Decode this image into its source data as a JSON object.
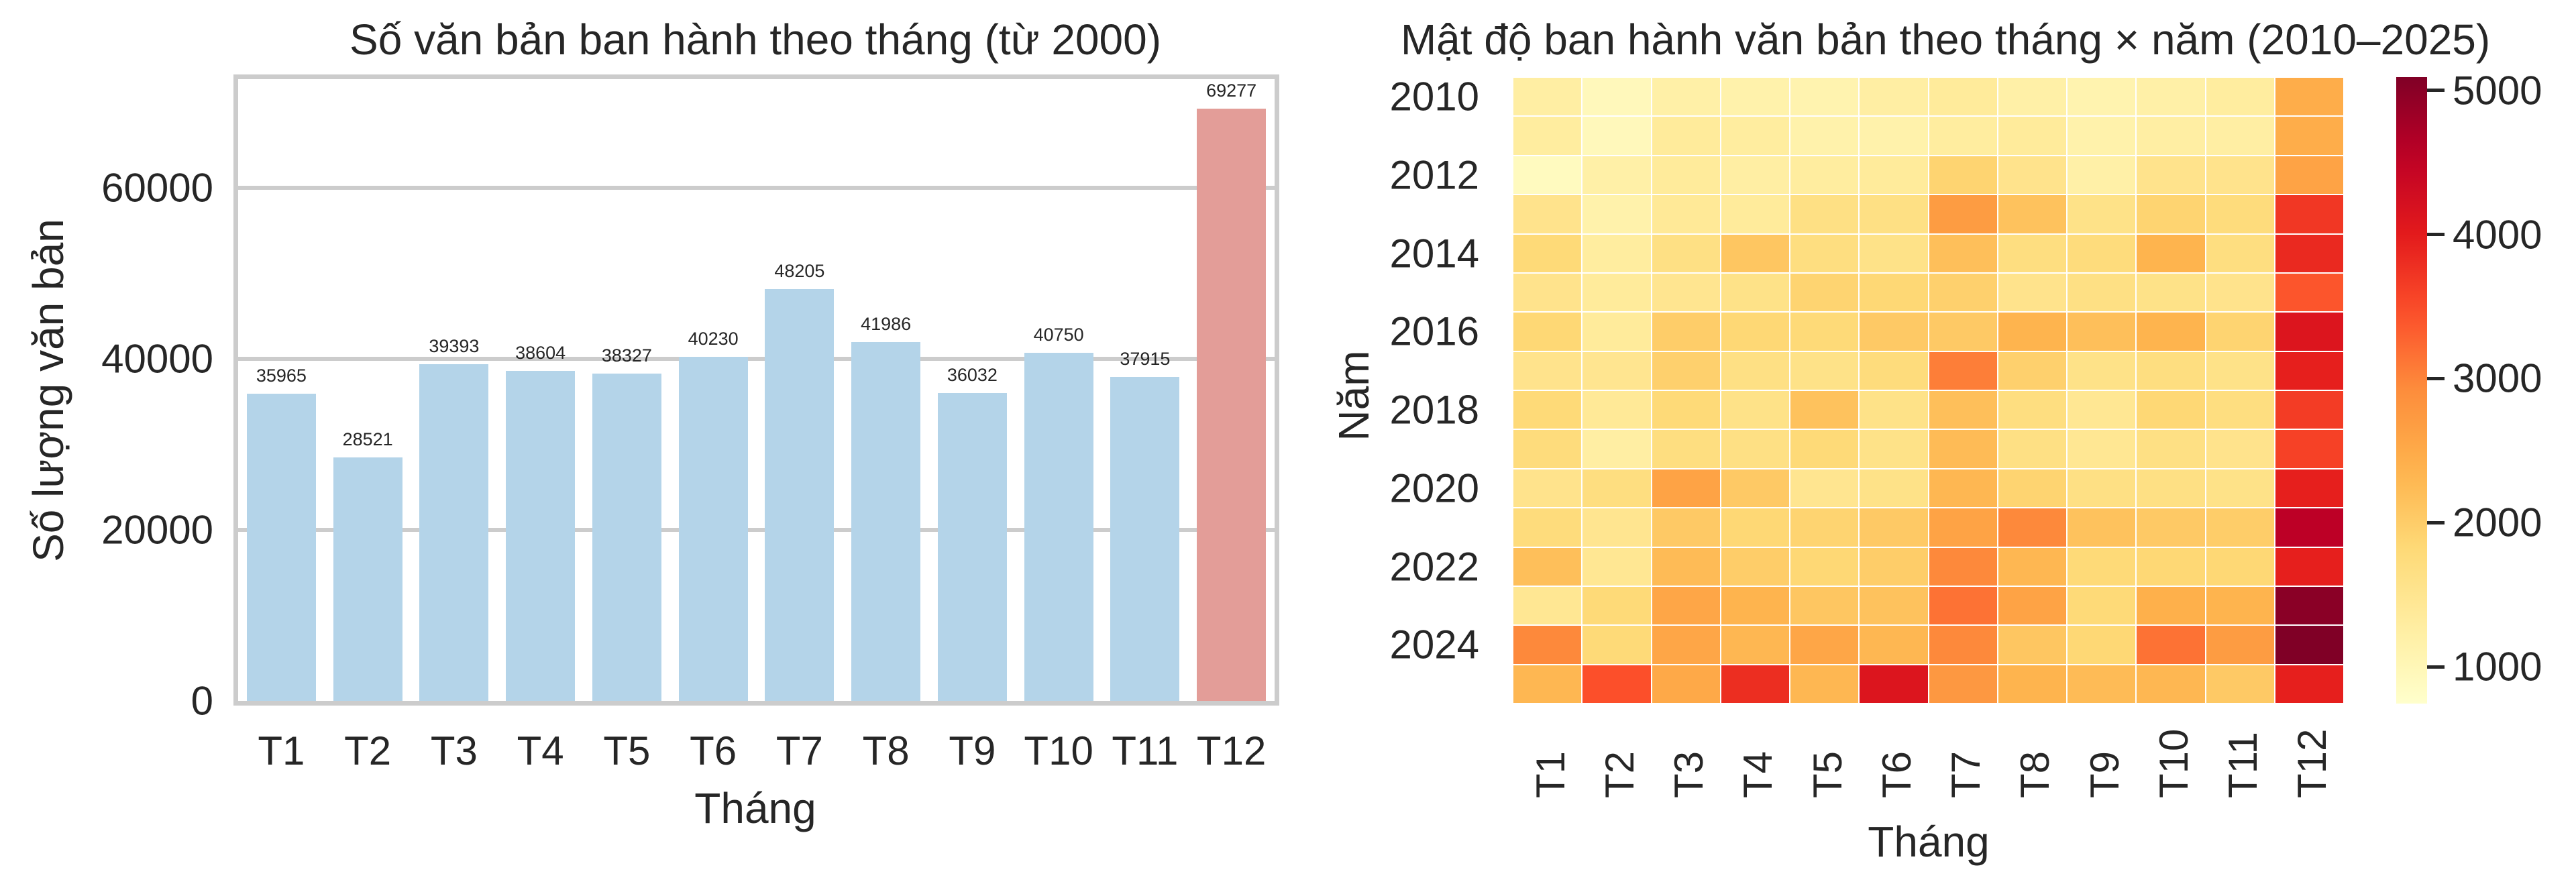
{
  "chart_data": [
    {
      "type": "bar",
      "title": "Số văn bản ban hành theo tháng (từ 2000)",
      "xlabel": "Tháng",
      "ylabel": "Số lượng văn bản",
      "categories": [
        "T1",
        "T2",
        "T3",
        "T4",
        "T5",
        "T6",
        "T7",
        "T8",
        "T9",
        "T10",
        "T11",
        "T12"
      ],
      "values": [
        35965,
        28521,
        39393,
        38604,
        38327,
        40230,
        48205,
        41986,
        36032,
        40750,
        37915,
        69277
      ],
      "data_labels": [
        "35965",
        "28521",
        "39393",
        "38604",
        "38327",
        "40230",
        "48205",
        "41986",
        "36032",
        "40750",
        "37915",
        "69277"
      ],
      "yticks": [
        0,
        20000,
        40000,
        60000
      ],
      "ytick_labels": [
        "0",
        "20000",
        "40000",
        "60000"
      ],
      "ylim": [
        0,
        72740
      ],
      "grid": true,
      "colors": {
        "default": "#b4d4e9",
        "highlight": "#e39d98",
        "highlight_index": 11
      }
    },
    {
      "type": "heatmap",
      "title": "Mật độ ban hành văn bản theo tháng × năm (2010–2025)",
      "xlabel": "Tháng",
      "ylabel": "Năm",
      "x": [
        "T1",
        "T2",
        "T3",
        "T4",
        "T5",
        "T6",
        "T7",
        "T8",
        "T9",
        "T10",
        "T11",
        "T12"
      ],
      "y": [
        2010,
        2011,
        2012,
        2013,
        2014,
        2015,
        2016,
        2017,
        2018,
        2019,
        2020,
        2021,
        2022,
        2023,
        2024,
        2025
      ],
      "ytick_labels": [
        "2010",
        "2012",
        "2014",
        "2016",
        "2018",
        "2020",
        "2022",
        "2024"
      ],
      "values": [
        [
          1250,
          950,
          1200,
          1150,
          1100,
          1250,
          1350,
          1200,
          1100,
          1200,
          1300,
          2450
        ],
        [
          1300,
          950,
          1350,
          1300,
          1150,
          1150,
          1300,
          1350,
          1150,
          1250,
          1250,
          2450
        ],
        [
          900,
          1200,
          1350,
          1250,
          1300,
          1350,
          1900,
          1550,
          1200,
          1550,
          1550,
          2600
        ],
        [
          1550,
          1150,
          1400,
          1350,
          1650,
          1650,
          2700,
          2150,
          1600,
          1900,
          1750,
          3700
        ],
        [
          1800,
          1300,
          1650,
          2100,
          1700,
          1600,
          2200,
          1700,
          1750,
          2350,
          1700,
          3850
        ],
        [
          1550,
          1350,
          1500,
          1600,
          1900,
          1850,
          1950,
          1550,
          1650,
          1600,
          1550,
          3400
        ],
        [
          1850,
          1350,
          2000,
          1850,
          1800,
          2050,
          2050,
          2350,
          2200,
          2350,
          1900,
          4100
        ],
        [
          1550,
          1500,
          1950,
          1650,
          1600,
          1750,
          3050,
          1950,
          1600,
          1700,
          1600,
          3950
        ],
        [
          1800,
          1400,
          1800,
          1600,
          2150,
          1600,
          2200,
          1700,
          1450,
          1850,
          1700,
          3650
        ],
        [
          1750,
          1250,
          1700,
          1650,
          1800,
          1600,
          2250,
          1650,
          1450,
          1650,
          1550,
          3600
        ],
        [
          1550,
          1700,
          2600,
          2050,
          1500,
          1600,
          2300,
          1900,
          1650,
          1650,
          1600,
          3950
        ],
        [
          1750,
          1500,
          2050,
          1850,
          1900,
          2050,
          2600,
          2950,
          2150,
          2050,
          2000,
          4550
        ],
        [
          2200,
          1450,
          2250,
          2000,
          1850,
          2000,
          2950,
          2300,
          1800,
          1850,
          1850,
          3950
        ],
        [
          1450,
          1800,
          2550,
          2350,
          2100,
          2150,
          3150,
          2600,
          1800,
          2400,
          2350,
          5000
        ],
        [
          2950,
          1800,
          2550,
          2300,
          2550,
          2300,
          2950,
          2100,
          1850,
          3150,
          2700,
          5090
        ],
        [
          2300,
          3450,
          2500,
          3800,
          2300,
          4100,
          2750,
          2350,
          2250,
          2300,
          2050,
          3950
        ]
      ],
      "colormap": "YlOrRd",
      "vmin": 744,
      "vmax": 5093,
      "colorbar_ticks": [
        1000,
        2000,
        3000,
        4000,
        5000
      ],
      "colorbar_tick_labels": [
        "1000",
        "2000",
        "3000",
        "4000",
        "5000"
      ]
    }
  ],
  "bar_chart": {
    "title": "Số văn bản ban hành theo tháng (từ 2000)",
    "xlabel": "Tháng",
    "ylabel": "Số lượng văn bản"
  },
  "heatmap": {
    "title": "Mật độ ban hành văn bản theo tháng × năm (2010–2025)",
    "xlabel": "Tháng",
    "ylabel": "Năm"
  }
}
